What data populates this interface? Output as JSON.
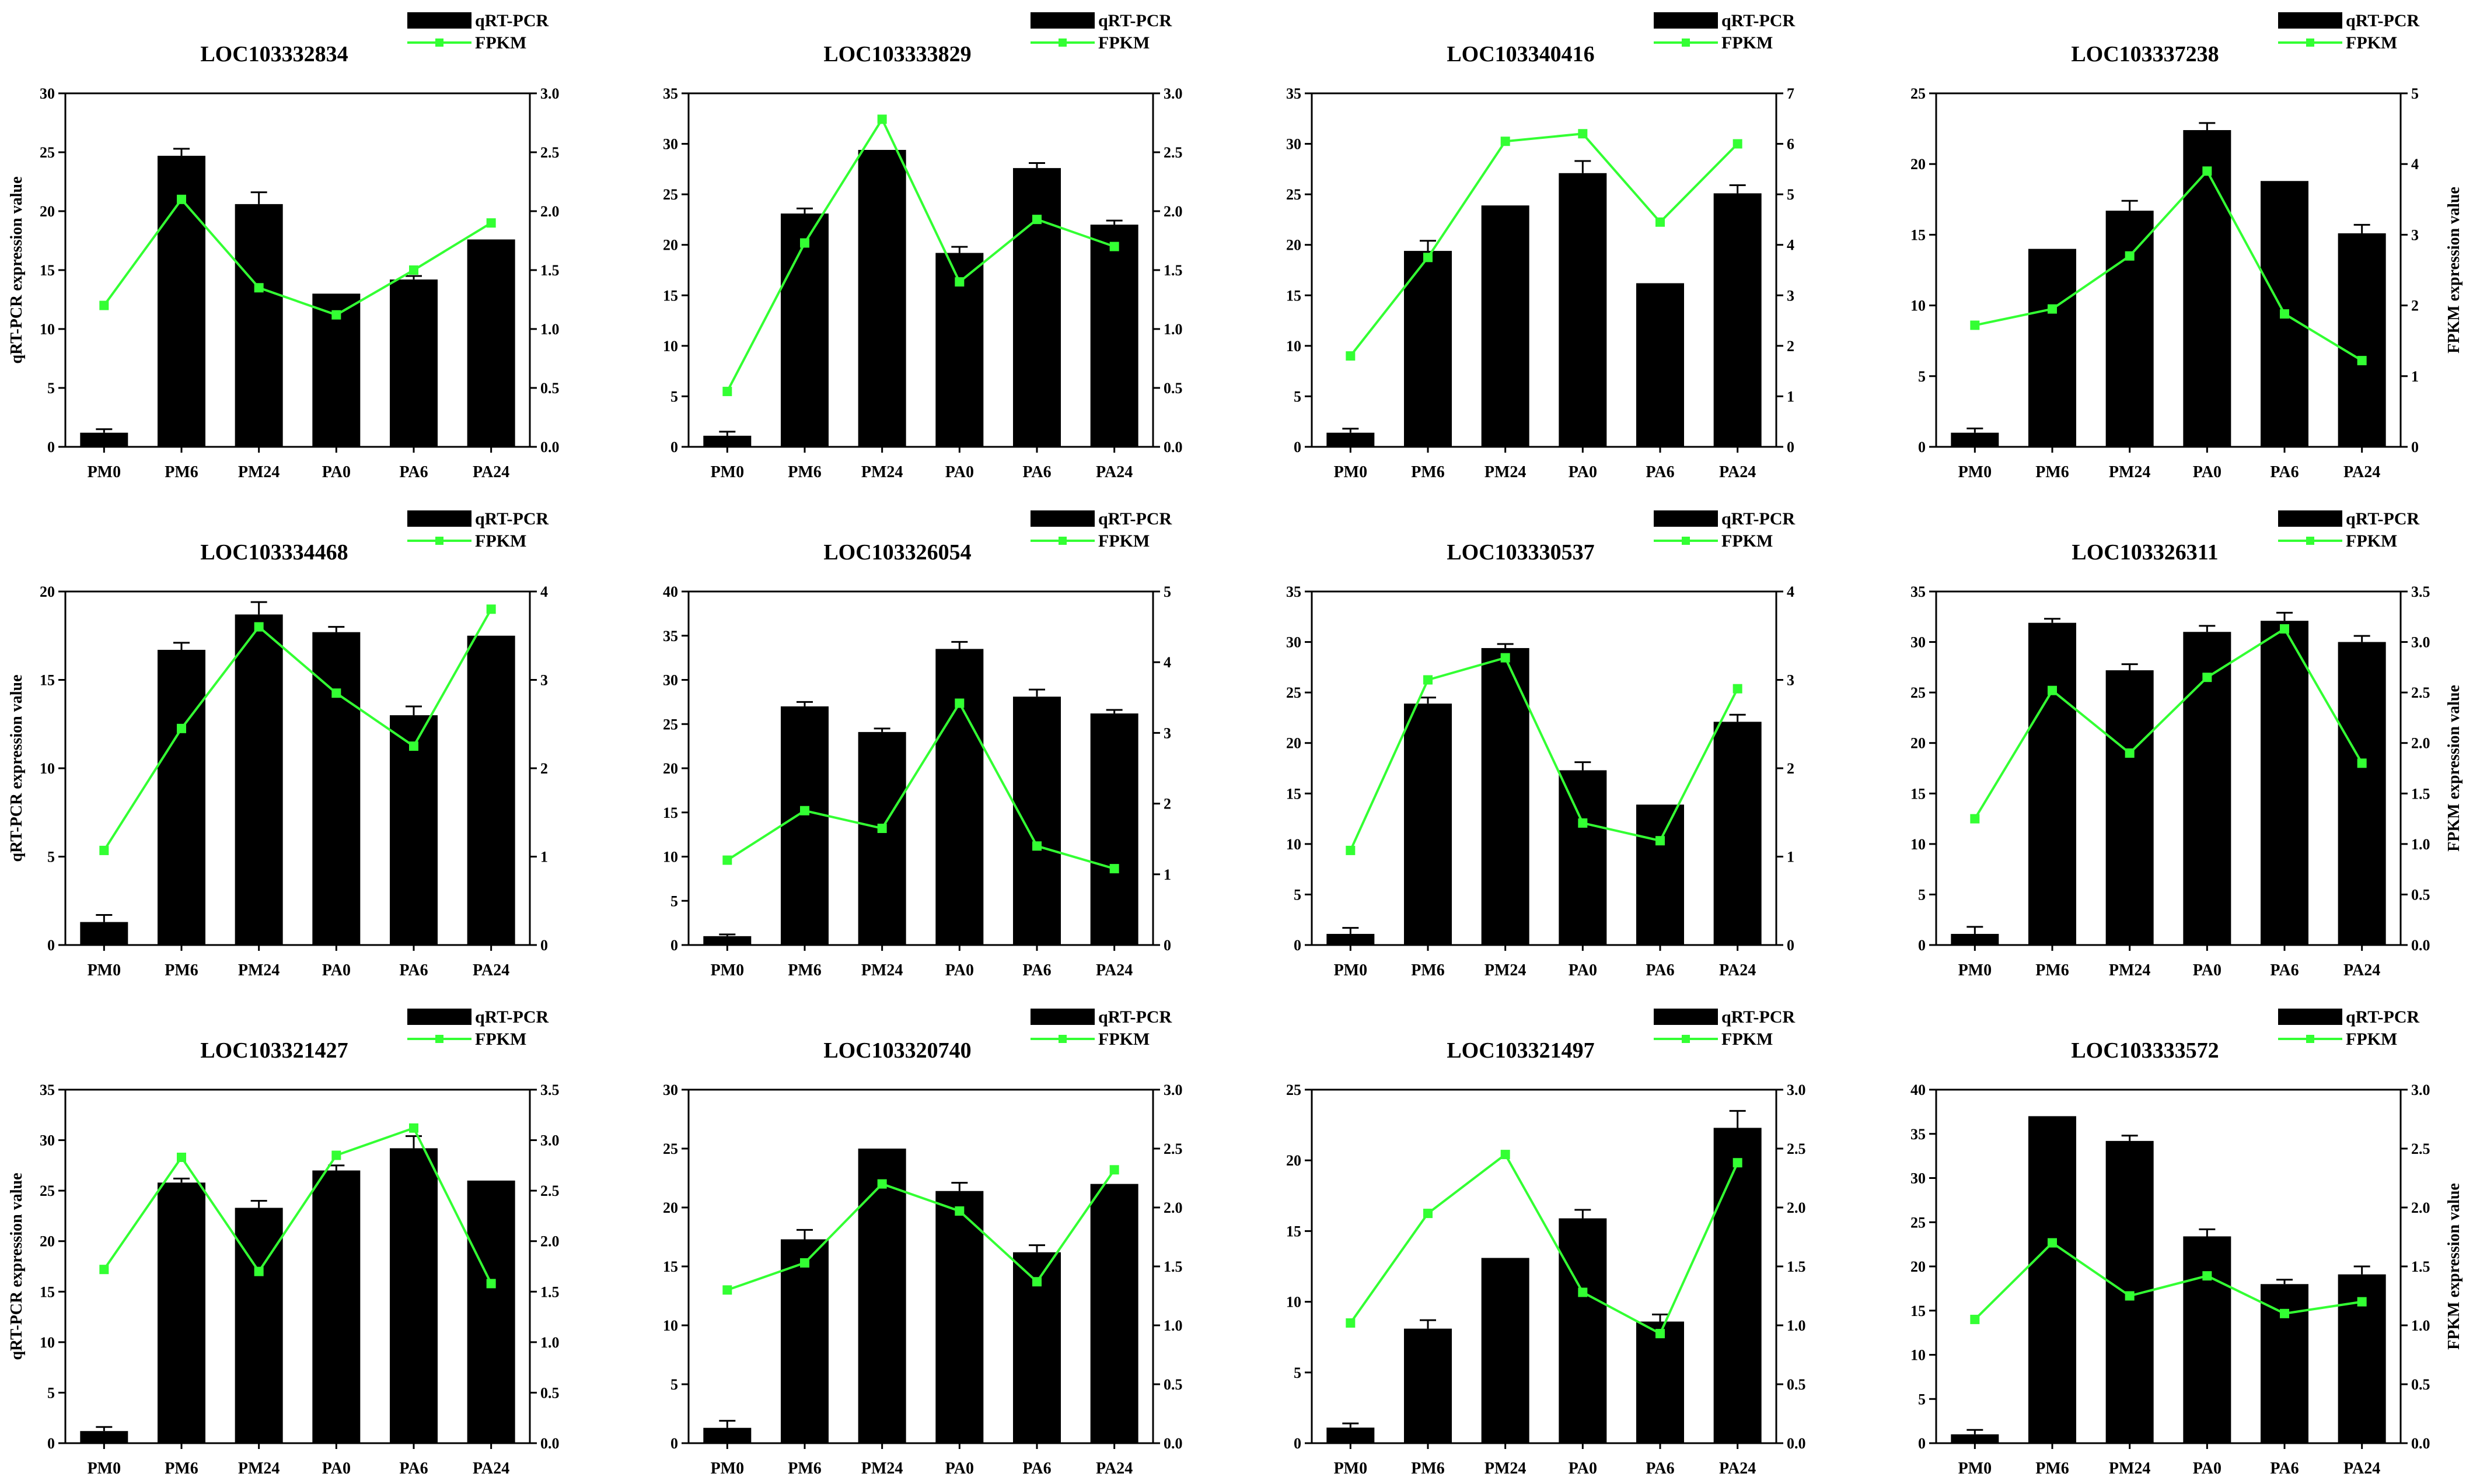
{
  "colors": {
    "bar": "#000000",
    "line": "#33ff33",
    "axis": "#000000"
  },
  "legend": {
    "bar_label": "qRT-PCR",
    "line_label": "FPKM"
  },
  "left_axis_label": "qRT-PCR expression value",
  "right_axis_label": "FPKM expression value",
  "chart_data": [
    {
      "type": "bar",
      "title": "LOC103332834",
      "categories": [
        "PM0",
        "PM6",
        "PM24",
        "PA0",
        "PA6",
        "PA24"
      ],
      "series": [
        {
          "name": "qRT-PCR",
          "axis": "left",
          "values": [
            1.2,
            24.7,
            20.6,
            13.0,
            14.2,
            17.6
          ],
          "errors": [
            0.3,
            0.6,
            1.0,
            0,
            0.3,
            0
          ]
        },
        {
          "name": "FPKM",
          "axis": "right",
          "values": [
            1.2,
            2.1,
            1.35,
            1.12,
            1.5,
            1.9
          ]
        }
      ],
      "ylim": [
        0,
        30
      ],
      "yticks": [
        0,
        5,
        10,
        15,
        20,
        25,
        30
      ],
      "y2lim": [
        0,
        3
      ],
      "y2ticks": [
        "0.0",
        "0.5",
        "1.0",
        "1.5",
        "2.0",
        "2.5",
        "3.0"
      ],
      "show_ylabel": true,
      "show_y2label": false
    },
    {
      "type": "bar",
      "title": "LOC103333829",
      "categories": [
        "PM0",
        "PM6",
        "PM24",
        "PA0",
        "PA6",
        "PA24"
      ],
      "series": [
        {
          "name": "qRT-PCR",
          "axis": "left",
          "values": [
            1.1,
            23.1,
            29.4,
            19.2,
            27.6,
            22.0
          ],
          "errors": [
            0.4,
            0.5,
            0,
            0.6,
            0.5,
            0.4
          ]
        },
        {
          "name": "FPKM",
          "axis": "right",
          "values": [
            0.47,
            1.73,
            2.78,
            1.4,
            1.93,
            1.7
          ]
        }
      ],
      "ylim": [
        0,
        35
      ],
      "yticks": [
        0,
        5,
        10,
        15,
        20,
        25,
        30,
        35
      ],
      "y2lim": [
        0,
        3
      ],
      "y2ticks": [
        "0.0",
        "0.5",
        "1.0",
        "1.5",
        "2.0",
        "2.5",
        "3.0"
      ],
      "show_ylabel": false,
      "show_y2label": false
    },
    {
      "type": "bar",
      "title": "LOC103340416",
      "categories": [
        "PM0",
        "PM6",
        "PM24",
        "PA0",
        "PA6",
        "PA24"
      ],
      "series": [
        {
          "name": "qRT-PCR",
          "axis": "left",
          "values": [
            1.4,
            19.4,
            23.9,
            27.1,
            16.2,
            25.1
          ],
          "errors": [
            0.4,
            1.0,
            0,
            1.2,
            0,
            0.8
          ]
        },
        {
          "name": "FPKM",
          "axis": "right",
          "values": [
            1.8,
            3.75,
            6.05,
            6.2,
            4.45,
            6.0
          ]
        }
      ],
      "ylim": [
        0,
        35
      ],
      "yticks": [
        0,
        5,
        10,
        15,
        20,
        25,
        30,
        35
      ],
      "y2lim": [
        0,
        7
      ],
      "y2ticks": [
        "0",
        "1",
        "2",
        "3",
        "4",
        "5",
        "6",
        "7"
      ],
      "show_ylabel": false,
      "show_y2label": false
    },
    {
      "type": "bar",
      "title": "LOC103337238",
      "categories": [
        "PM0",
        "PM6",
        "PM24",
        "PA0",
        "PA6",
        "PA24"
      ],
      "series": [
        {
          "name": "qRT-PCR",
          "axis": "left",
          "values": [
            1.0,
            14.0,
            16.7,
            22.4,
            18.8,
            15.1
          ],
          "errors": [
            0.3,
            0,
            0.7,
            0.5,
            0,
            0.6
          ]
        },
        {
          "name": "FPKM",
          "axis": "right",
          "values": [
            1.72,
            1.95,
            2.7,
            3.9,
            1.88,
            1.22
          ]
        }
      ],
      "ylim": [
        0,
        25
      ],
      "yticks": [
        0,
        5,
        10,
        15,
        20,
        25
      ],
      "y2lim": [
        0,
        5
      ],
      "y2ticks": [
        "0",
        "1",
        "2",
        "3",
        "4",
        "5"
      ],
      "show_ylabel": false,
      "show_y2label": true
    },
    {
      "type": "bar",
      "title": "LOC103334468",
      "categories": [
        "PM0",
        "PM6",
        "PM24",
        "PA0",
        "PA6",
        "PA24"
      ],
      "series": [
        {
          "name": "qRT-PCR",
          "axis": "left",
          "values": [
            1.3,
            16.7,
            18.7,
            17.7,
            13.0,
            17.5
          ],
          "errors": [
            0.4,
            0.4,
            0.7,
            0.3,
            0.5,
            0
          ]
        },
        {
          "name": "FPKM",
          "axis": "right",
          "values": [
            1.07,
            2.45,
            3.6,
            2.85,
            2.25,
            3.8
          ]
        }
      ],
      "ylim": [
        0,
        20
      ],
      "yticks": [
        0,
        5,
        10,
        15,
        20
      ],
      "y2lim": [
        0,
        4
      ],
      "y2ticks": [
        "0",
        "1",
        "2",
        "3",
        "4"
      ],
      "show_ylabel": true,
      "show_y2label": false
    },
    {
      "type": "bar",
      "title": "LOC103326054",
      "categories": [
        "PM0",
        "PM6",
        "PM24",
        "PA0",
        "PA6",
        "PA24"
      ],
      "series": [
        {
          "name": "qRT-PCR",
          "axis": "left",
          "values": [
            1.0,
            27.0,
            24.1,
            33.5,
            28.1,
            26.2
          ],
          "errors": [
            0.2,
            0.5,
            0.4,
            0.8,
            0.8,
            0.4
          ]
        },
        {
          "name": "FPKM",
          "axis": "right",
          "values": [
            1.2,
            1.9,
            1.65,
            3.42,
            1.4,
            1.08
          ]
        }
      ],
      "ylim": [
        0,
        40
      ],
      "yticks": [
        0,
        5,
        10,
        15,
        20,
        25,
        30,
        35,
        40
      ],
      "y2lim": [
        0,
        5
      ],
      "y2ticks": [
        "0",
        "1",
        "2",
        "3",
        "4",
        "5"
      ],
      "show_ylabel": false,
      "show_y2label": false
    },
    {
      "type": "bar",
      "title": "LOC103330537",
      "categories": [
        "PM0",
        "PM6",
        "PM24",
        "PA0",
        "PA6",
        "PA24"
      ],
      "series": [
        {
          "name": "qRT-PCR",
          "axis": "left",
          "values": [
            1.1,
            23.9,
            29.4,
            17.3,
            13.9,
            22.1
          ],
          "errors": [
            0.6,
            0.6,
            0.4,
            0.8,
            0,
            0.7
          ]
        },
        {
          "name": "FPKM",
          "axis": "right",
          "values": [
            1.07,
            3.0,
            3.25,
            1.38,
            1.18,
            2.9
          ]
        }
      ],
      "ylim": [
        0,
        35
      ],
      "yticks": [
        0,
        5,
        10,
        15,
        20,
        25,
        30,
        35
      ],
      "y2lim": [
        0,
        4
      ],
      "y2ticks": [
        "0",
        "1",
        "2",
        "3",
        "4"
      ],
      "show_ylabel": false,
      "show_y2label": false
    },
    {
      "type": "bar",
      "title": "LOC103326311",
      "categories": [
        "PM0",
        "PM6",
        "PM24",
        "PA0",
        "PA6",
        "PA24"
      ],
      "series": [
        {
          "name": "qRT-PCR",
          "axis": "left",
          "values": [
            1.1,
            31.9,
            27.2,
            31.0,
            32.1,
            30.0
          ],
          "errors": [
            0.7,
            0.4,
            0.6,
            0.6,
            0.8,
            0.6
          ]
        },
        {
          "name": "FPKM",
          "axis": "right",
          "values": [
            1.25,
            2.52,
            1.9,
            2.65,
            3.13,
            1.8
          ]
        }
      ],
      "ylim": [
        0,
        35
      ],
      "yticks": [
        0,
        5,
        10,
        15,
        20,
        25,
        30,
        35
      ],
      "y2lim": [
        0,
        3.5
      ],
      "y2ticks": [
        "0.0",
        "0.5",
        "1.0",
        "1.5",
        "2.0",
        "2.5",
        "3.0",
        "3.5"
      ],
      "show_ylabel": false,
      "show_y2label": true
    },
    {
      "type": "bar",
      "title": "LOC103321427",
      "categories": [
        "PM0",
        "PM6",
        "PM24",
        "PA0",
        "PA6",
        "PA24"
      ],
      "series": [
        {
          "name": "qRT-PCR",
          "axis": "left",
          "values": [
            1.2,
            25.8,
            23.3,
            27.0,
            29.2,
            26.0
          ],
          "errors": [
            0.4,
            0.4,
            0.7,
            0.5,
            1.2,
            0
          ]
        },
        {
          "name": "FPKM",
          "axis": "right",
          "values": [
            1.72,
            2.83,
            1.7,
            2.85,
            3.12,
            1.58
          ]
        }
      ],
      "ylim": [
        0,
        35
      ],
      "yticks": [
        0,
        5,
        10,
        15,
        20,
        25,
        30,
        35
      ],
      "y2lim": [
        0,
        3.5
      ],
      "y2ticks": [
        "0.0",
        "0.5",
        "1.0",
        "1.5",
        "2.0",
        "2.5",
        "3.0",
        "3.5"
      ],
      "show_ylabel": true,
      "show_y2label": false
    },
    {
      "type": "bar",
      "title": "LOC103320740",
      "categories": [
        "PM0",
        "PM6",
        "PM24",
        "PA0",
        "PA6",
        "PA24"
      ],
      "series": [
        {
          "name": "qRT-PCR",
          "axis": "left",
          "values": [
            1.3,
            17.3,
            25.0,
            21.4,
            16.2,
            22.0
          ],
          "errors": [
            0.6,
            0.8,
            0,
            0.7,
            0.6,
            0
          ]
        },
        {
          "name": "FPKM",
          "axis": "right",
          "values": [
            1.3,
            1.53,
            2.2,
            1.97,
            1.37,
            2.32
          ]
        }
      ],
      "ylim": [
        0,
        30
      ],
      "yticks": [
        0,
        5,
        10,
        15,
        20,
        25,
        30
      ],
      "y2lim": [
        0,
        3
      ],
      "y2ticks": [
        "0.0",
        "0.5",
        "1.0",
        "1.5",
        "2.0",
        "2.5",
        "3.0"
      ],
      "show_ylabel": false,
      "show_y2label": false
    },
    {
      "type": "bar",
      "title": "LOC103321497",
      "categories": [
        "PM0",
        "PM6",
        "PM24",
        "PA0",
        "PA6",
        "PA24"
      ],
      "series": [
        {
          "name": "qRT-PCR",
          "axis": "left",
          "values": [
            1.1,
            8.1,
            13.1,
            15.9,
            8.6,
            22.3
          ],
          "errors": [
            0.3,
            0.6,
            0,
            0.6,
            0.5,
            1.2
          ]
        },
        {
          "name": "FPKM",
          "axis": "right",
          "values": [
            1.02,
            1.95,
            2.45,
            1.28,
            0.93,
            2.38
          ]
        }
      ],
      "ylim": [
        0,
        25
      ],
      "yticks": [
        0,
        5,
        10,
        15,
        20,
        25
      ],
      "y2lim": [
        0,
        3
      ],
      "y2ticks": [
        "0.0",
        "0.5",
        "1.0",
        "1.5",
        "2.0",
        "2.5",
        "3.0"
      ],
      "show_ylabel": false,
      "show_y2label": false
    },
    {
      "type": "bar",
      "title": "LOC103333572",
      "categories": [
        "PM0",
        "PM6",
        "PM24",
        "PA0",
        "PA6",
        "PA24"
      ],
      "series": [
        {
          "name": "qRT-PCR",
          "axis": "left",
          "values": [
            1.0,
            37.0,
            34.2,
            23.4,
            18.0,
            19.1
          ],
          "errors": [
            0.5,
            0,
            0.6,
            0.8,
            0.5,
            0.9
          ]
        },
        {
          "name": "FPKM",
          "axis": "right",
          "values": [
            1.05,
            1.7,
            1.25,
            1.42,
            1.1,
            1.2
          ]
        }
      ],
      "ylim": [
        0,
        40
      ],
      "yticks": [
        0,
        5,
        10,
        15,
        20,
        25,
        30,
        35,
        40
      ],
      "y2lim": [
        0,
        3
      ],
      "y2ticks": [
        "0.0",
        "0.5",
        "1.0",
        "1.5",
        "2.0",
        "2.5",
        "3.0"
      ],
      "show_ylabel": false,
      "show_y2label": true
    }
  ]
}
